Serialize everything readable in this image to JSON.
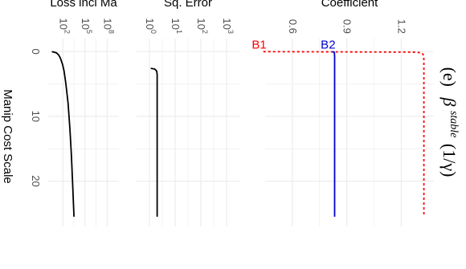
{
  "title": {
    "label": "(e)",
    "symbol": "β",
    "superscript": "stable",
    "argument": "(1/γ)"
  },
  "shared_axis": {
    "label": "Manip Cost Scale",
    "ticks": [
      0,
      10,
      20
    ]
  },
  "colors": {
    "grid": "#ebebeb",
    "b1": "#ff0000",
    "b2": "#0000cc",
    "line": "#000000"
  },
  "chart_data": [
    {
      "type": "line",
      "name": "coefficient-panel",
      "xlabel": "Manip Cost Scale",
      "ylabel": "Coefficient",
      "xlim": [
        -2,
        27
      ],
      "ylim": [
        0.45,
        1.38
      ],
      "yticks": [
        {
          "value": 1.2,
          "label": "1.2"
        },
        {
          "value": 0.9,
          "label": "0.9"
        },
        {
          "value": 0.6,
          "label": "0.6"
        }
      ],
      "series": [
        {
          "name": "B1",
          "style": "dashed",
          "x": [
            0.02,
            0.1,
            0.2,
            0.4,
            0.8,
            1.2,
            2,
            4,
            10,
            20,
            25.5
          ],
          "y": [
            0.44,
            1.28,
            1.31,
            1.32,
            1.323,
            1.325,
            1.325,
            1.325,
            1.325,
            1.325,
            1.325
          ]
        },
        {
          "name": "B2",
          "style": "solid",
          "x": [
            0.02,
            0.1,
            0.3,
            0.8,
            2,
            5,
            10,
            20,
            25.5
          ],
          "y": [
            0.82,
            0.83,
            0.832,
            0.833,
            0.833,
            0.833,
            0.833,
            0.833,
            0.833
          ]
        }
      ]
    },
    {
      "type": "line",
      "name": "sq-error-panel",
      "xlabel": "Manip Cost Scale",
      "ylabel": "Sq. Error",
      "yscale": "log",
      "xlim": [
        -2,
        27
      ],
      "ylim": [
        -0.5,
        3.5
      ],
      "yticks": [
        {
          "value": 3,
          "label": "10",
          "exp": "3"
        },
        {
          "value": 2,
          "label": "10",
          "exp": "2"
        },
        {
          "value": 1,
          "label": "10",
          "exp": "1"
        },
        {
          "value": 0,
          "label": "10",
          "exp": "0"
        }
      ],
      "series": [
        {
          "name": "",
          "style": "solid",
          "x": [
            2.6,
            2.7,
            3.0,
            3.5,
            4.5,
            6,
            10,
            20,
            25.5
          ],
          "y": [
            0.05,
            0.2,
            0.28,
            0.3,
            0.3,
            0.3,
            0.3,
            0.3,
            0.3
          ]
        }
      ]
    },
    {
      "type": "line",
      "name": "loss-panel",
      "xlabel": "Manip Cost Scale",
      "ylabel": "Loss incl Ma",
      "yscale": "log",
      "xlim": [
        -2,
        27
      ],
      "ylim": [
        0,
        9.6
      ],
      "yticks": [
        {
          "value": 8,
          "label": "10",
          "exp": "8"
        },
        {
          "value": 5,
          "label": "10",
          "exp": "5"
        },
        {
          "value": 2,
          "label": "10",
          "exp": "2"
        }
      ],
      "series": [
        {
          "name": "",
          "style": "solid",
          "x": [
            0.02,
            0.2,
            0.5,
            1,
            2,
            3,
            5,
            8,
            12,
            16,
            20,
            25.5
          ],
          "y": [
            0.5,
            1.1,
            1.4,
            1.65,
            1.95,
            2.15,
            2.4,
            2.7,
            2.95,
            3.15,
            3.3,
            3.5
          ]
        }
      ]
    }
  ]
}
